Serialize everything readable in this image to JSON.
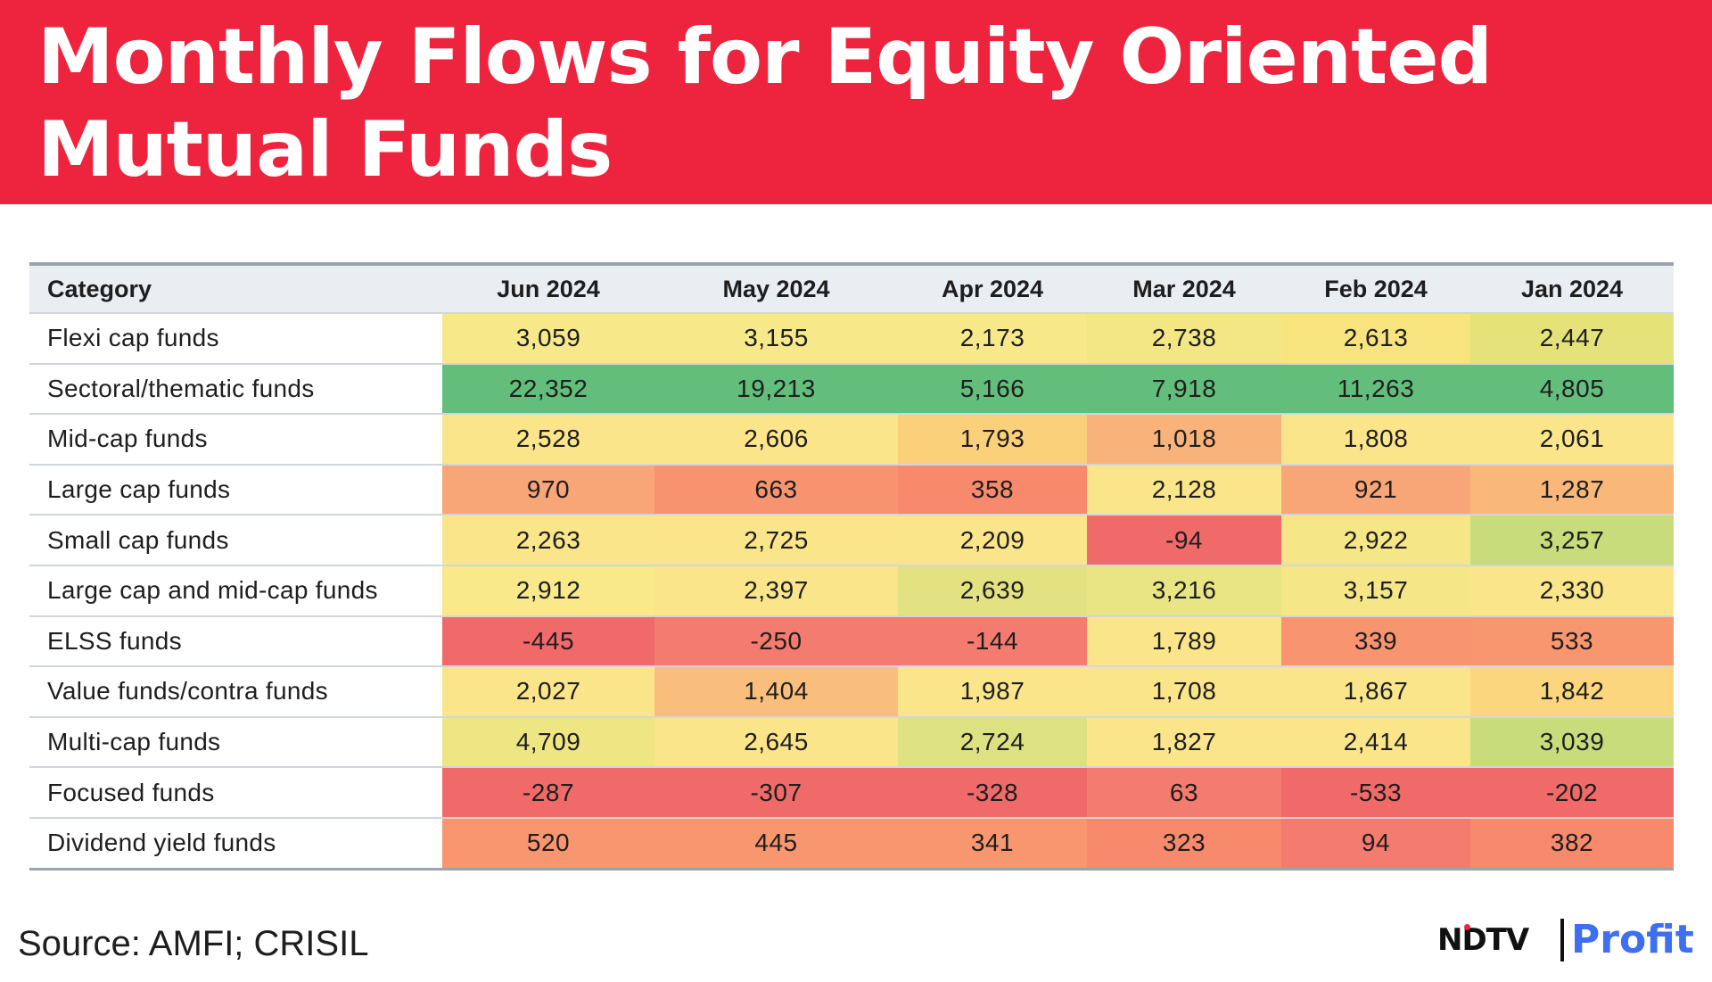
{
  "title": "Monthly Flows for Equity Oriented Mutual Funds",
  "source": "Source: AMFI; CRISIL",
  "logo": {
    "ndtv": "NDTV",
    "profit": "Profit"
  },
  "chart_data": {
    "type": "table",
    "title": "Monthly Flows for Equity Oriented Mutual Funds",
    "columns": [
      "Category",
      "Jun 2024",
      "May 2024",
      "Apr 2024",
      "Mar 2024",
      "Feb 2024",
      "Jan 2024"
    ],
    "rows": [
      {
        "category": "Flexi cap funds",
        "values": [
          "3,059",
          "3,155",
          "2,173",
          "2,738",
          "2,613",
          "2,447"
        ],
        "colors": [
          "#f7e98a",
          "#f7e98a",
          "#f7e98a",
          "#f3e685",
          "#f7e47e",
          "#e6e27a"
        ]
      },
      {
        "category": "Sectoral/thematic funds",
        "values": [
          "22,352",
          "19,213",
          "5,166",
          "7,918",
          "11,263",
          "4,805"
        ],
        "colors": [
          "#63be7b",
          "#63be7b",
          "#63be7b",
          "#63be7b",
          "#63be7b",
          "#63be7b"
        ]
      },
      {
        "category": "Mid-cap funds",
        "values": [
          "2,528",
          "2,606",
          "1,793",
          "1,018",
          "1,808",
          "2,061"
        ],
        "colors": [
          "#fbe58a",
          "#fbe58a",
          "#fbd07a",
          "#f8b27a",
          "#fbe58a",
          "#fbe58a"
        ]
      },
      {
        "category": "Large  cap funds",
        "values": [
          "970",
          "663",
          "358",
          "2,128",
          "921",
          "1,287"
        ],
        "colors": [
          "#f8a577",
          "#f7946f",
          "#f7896d",
          "#fbe58a",
          "#f8a577",
          "#f9b77a"
        ]
      },
      {
        "category": "Small cap funds",
        "values": [
          "2,263",
          "2,725",
          "2,209",
          "-94",
          "2,922",
          "3,257"
        ],
        "colors": [
          "#fbe58a",
          "#fbe58a",
          "#fbe58a",
          "#f06a6a",
          "#f5e787",
          "#c8dc7c"
        ]
      },
      {
        "category": "Large cap and mid-cap funds",
        "values": [
          "2,912",
          "2,397",
          "2,639",
          "3,216",
          "3,157",
          "2,330"
        ],
        "colors": [
          "#f9e98a",
          "#fbe58a",
          "#e3e283",
          "#e9e585",
          "#f5e787",
          "#fbe58a"
        ]
      },
      {
        "category": "ELSS funds",
        "values": [
          "-445",
          "-250",
          "-144",
          "1,789",
          "339",
          "533"
        ],
        "colors": [
          "#f06a6a",
          "#f37b6f",
          "#f37b6f",
          "#fbe58a",
          "#f8946f",
          "#f8966f"
        ]
      },
      {
        "category": "Value funds/contra funds",
        "values": [
          "2,027",
          "1,404",
          "1,987",
          "1,708",
          "1,867",
          "1,842"
        ],
        "colors": [
          "#fbe58a",
          "#f9be7c",
          "#fbe58a",
          "#fbe58a",
          "#fbe58a",
          "#fbd67f"
        ]
      },
      {
        "category": "Multi-cap funds",
        "values": [
          "4,709",
          "2,645",
          "2,724",
          "1,827",
          "2,414",
          "3,039"
        ],
        "colors": [
          "#eee583",
          "#fbe58a",
          "#dde182",
          "#fbe58a",
          "#fbe58a",
          "#c8dc7c"
        ]
      },
      {
        "category": "Focused funds",
        "values": [
          "-287",
          "-307",
          "-328",
          "63",
          "-533",
          "-202"
        ],
        "colors": [
          "#f06a6a",
          "#f06a6a",
          "#f06a6a",
          "#f37b6f",
          "#f06a6a",
          "#f06a6a"
        ]
      },
      {
        "category": "Dividend yield funds",
        "values": [
          "520",
          "445",
          "341",
          "323",
          "94",
          "382"
        ],
        "colors": [
          "#f8966f",
          "#f8966f",
          "#f8966f",
          "#f7896d",
          "#f37b6f",
          "#f7896d"
        ]
      }
    ]
  }
}
